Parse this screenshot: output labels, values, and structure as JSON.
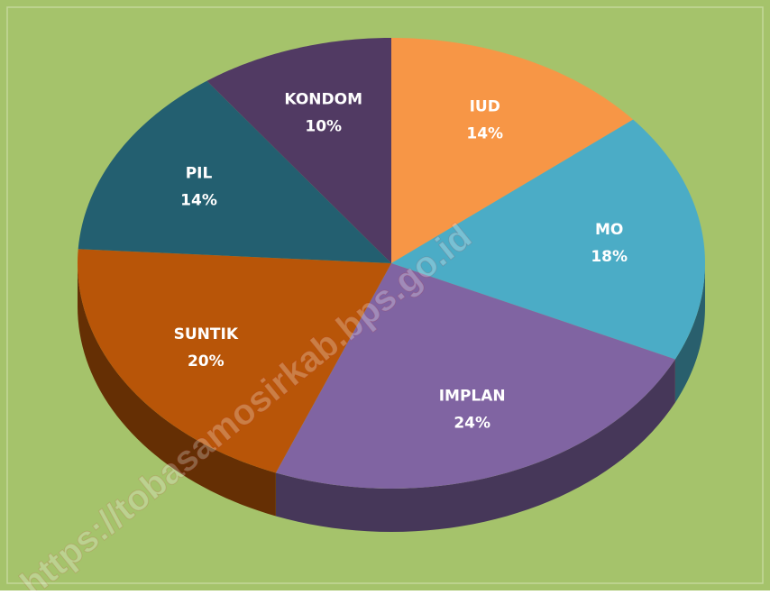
{
  "chart_data": {
    "type": "pie",
    "categories": [
      "IUD",
      "MO",
      "IMPLAN",
      "SUNTIK",
      "PIL",
      "KONDOM"
    ],
    "values": [
      14,
      18,
      24,
      20,
      14,
      10
    ],
    "value_labels": [
      "14%",
      "18%",
      "24%",
      "20%",
      "14%",
      "10%"
    ],
    "colors": [
      "#f79646",
      "#4bacc6",
      "#8064a2",
      "#b85508",
      "#235f70",
      "#513a63"
    ],
    "watermark": "https://tobasamosirkab.bps.go.id"
  }
}
